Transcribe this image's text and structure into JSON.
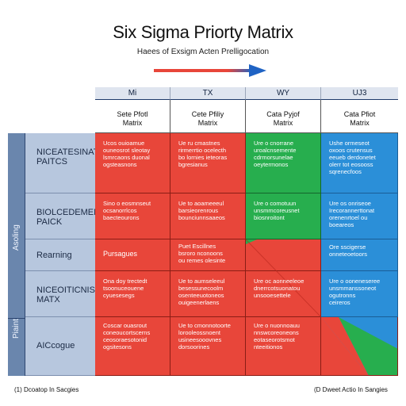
{
  "header": {
    "title": "Six Sigma Priorty Matrix",
    "subtitle": "Haees of Exsigm Acten Prelligocation"
  },
  "columns": [
    {
      "top": "Mi",
      "sub": "Sete Pfotl\nMatrix"
    },
    {
      "top": "TX",
      "sub": "Cete Pfiliy\nMatrix"
    },
    {
      "top": "WY",
      "sub": "Cata Pyjof\nMatrix"
    },
    {
      "top": "UJ3",
      "sub": "Cata Pfiot\nMatrix"
    }
  ],
  "side_labels": {
    "upper": "Asoling",
    "lower": "Piaintis"
  },
  "rows": [
    {
      "label": "NICEATESINAT\nPAITCS"
    },
    {
      "label": "BIOLCEDEMENT\nPAICK"
    },
    {
      "label": "Rearning"
    },
    {
      "label": "NICEOITICNIS\nMATX"
    },
    {
      "label": "AICcogue"
    }
  ],
  "cells": [
    [
      "Ucos ouioamue\nouneosrot sleotay\nlsmrcaons duonal\nogsteasnons",
      "Ue ru cmastnes\nrirmerrtio ocelecth\nbo lornies ieteoras\nbgresianus",
      "Ure o cnorrane\nuroalcnsemente\ncdrmorsunelae\noeytermonos",
      "Ushe ormeseot\noxoos crutensus\neeueb derdonetet\nolerr tot eosooss\nsqrenecfoos"
    ],
    [
      "Sino o eosmnseut\nocsanorrlcos\nbaecteourons",
      "Ue to aoameeeul\nbarsieorenrous\nbounciunnsaaeos",
      "Ure o comotuun\nunsmmcoreusnet\nbiosnroitont",
      "Ure os onriseoe\nIrecorannerttonat\norenenrtoel ou\nboeareos"
    ],
    [
      "Pursagues",
      "Puet Escillnes\nbsroro nconoons\nou remes olesinte",
      "",
      "Ore sscigerse\nonneteoetoors"
    ],
    [
      "Ona doy trectedt\ntsoonuceouene\ncyuesesegs",
      "Ue to aumseleeul\nbesessunecoolm\nosenteeuotoneos\nouigeenerlaens",
      "Ure oc aonneeleoe\ndnerrcotsuonatou\nunsooesettele",
      "Ure o ooneneseree\nunsmmanssoneot\nogutronns\nceireros"
    ],
    [
      "Coscar ouasrout\nconeoucortscerns\nceosoraesotonid\nogsitesons",
      "Ue to cmonnotoorte\nlorooleossnoent\nusineesooovnes\ndorsoorines",
      "Ure o nuonnoauu\nnnswcoreoneons\neotaseorotsmot\nnteeitionos",
      ""
    ]
  ],
  "cell_colors": [
    [
      "red",
      "red",
      "green",
      "blue"
    ],
    [
      "red",
      "red",
      "green",
      "blue"
    ],
    [
      "red",
      "red",
      "split-green-red",
      "blue"
    ],
    [
      "red",
      "red",
      "red",
      "blue"
    ],
    [
      "red",
      "red",
      "red",
      "split-red-green-blue"
    ]
  ],
  "footer": {
    "left": "(1) Dcoatop In Sacgies",
    "right": "(D Dweet Actio In Sangies"
  },
  "colors": {
    "red": "#e8463a",
    "green": "#27ae4e",
    "blue": "#2b8fd8",
    "header_band": "#dfe5ef",
    "side_strip": "#6a86ad",
    "row_header": "#b7c7de",
    "arrow_red": "#e8463a",
    "arrow_blue": "#1f63c4"
  }
}
